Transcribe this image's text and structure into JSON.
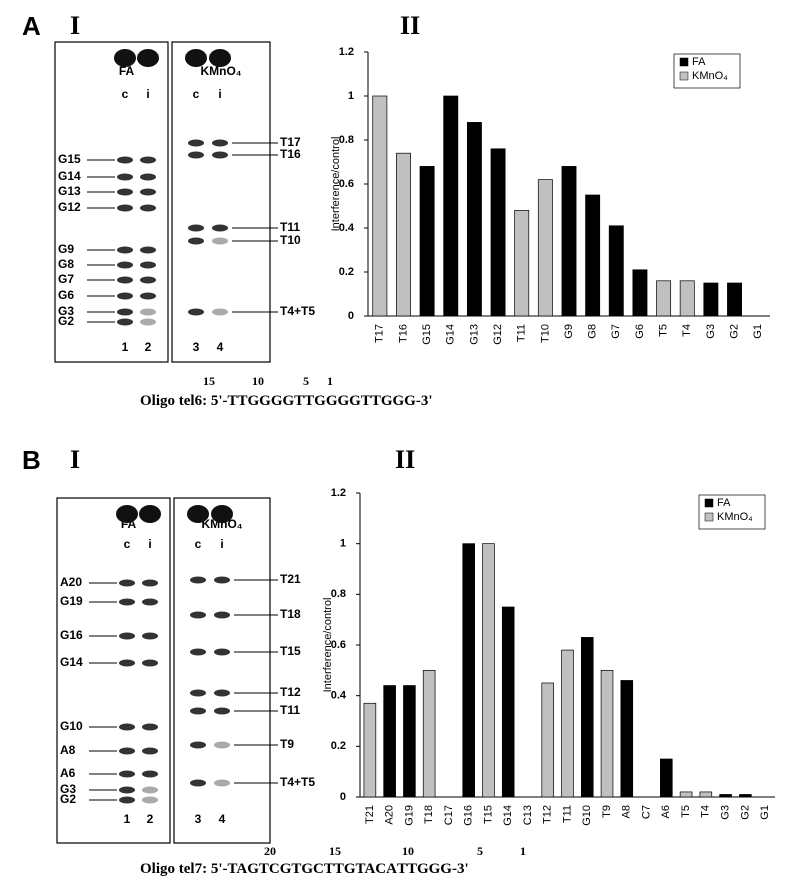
{
  "chart_data": [
    {
      "type": "bar",
      "y_label": "Interference/control",
      "categories": [
        "T17",
        "T16",
        "G15",
        "G14",
        "G13",
        "G12",
        "T11",
        "T10",
        "G9",
        "G8",
        "G7",
        "G6",
        "T5",
        "T4",
        "G3",
        "G2",
        "G1"
      ],
      "series": [
        {
          "name": "FA",
          "color": "#000000",
          "values": [
            null,
            null,
            0.68,
            1.0,
            0.88,
            0.76,
            null,
            null,
            0.68,
            0.55,
            0.41,
            0.21,
            null,
            null,
            0.15,
            0.15,
            0
          ]
        },
        {
          "name": "KMnO₄",
          "color": "#c0c0c0",
          "values": [
            1.0,
            0.74,
            null,
            null,
            null,
            null,
            0.48,
            0.62,
            null,
            null,
            null,
            null,
            0.16,
            0.16,
            null,
            null,
            null
          ]
        }
      ],
      "ylim": [
        0,
        1.2
      ],
      "yticks": [
        0,
        0.2,
        0.4,
        0.6,
        0.8,
        1,
        1.2
      ],
      "grid": false,
      "legend": "top-right"
    },
    {
      "type": "bar",
      "y_label": "Interference/control",
      "categories": [
        "T21",
        "A20",
        "G19",
        "T18",
        "C17",
        "G16",
        "T15",
        "G14",
        "C13",
        "T12",
        "T11",
        "G10",
        "T9",
        "A8",
        "C7",
        "A6",
        "T5",
        "T4",
        "G3",
        "G2",
        "G1"
      ],
      "series": [
        {
          "name": "FA",
          "color": "#000000",
          "values": [
            null,
            0.44,
            0.44,
            null,
            null,
            1.0,
            null,
            0.75,
            null,
            null,
            null,
            0.63,
            null,
            0.46,
            null,
            0.15,
            null,
            null,
            0.01,
            0.01,
            0
          ]
        },
        {
          "name": "KMnO₄",
          "color": "#c0c0c0",
          "values": [
            0.37,
            null,
            null,
            0.5,
            null,
            null,
            1.0,
            null,
            null,
            0.45,
            0.58,
            null,
            0.5,
            null,
            null,
            null,
            0.02,
            0.02,
            null,
            null,
            null
          ]
        }
      ],
      "ylim": [
        0,
        1.2
      ],
      "yticks": [
        0,
        0.2,
        0.4,
        0.6,
        0.8,
        1,
        1.2
      ],
      "grid": false,
      "legend": "top-right"
    }
  ],
  "figure": {
    "panels": [
      {
        "letter": "A",
        "gel_numeral": "I",
        "chart_numeral": "II",
        "gel": {
          "headers": [
            "FA",
            "KMnO₄"
          ],
          "lanes": [
            "c",
            "i",
            "c",
            "i"
          ],
          "lane_numbers": [
            "1",
            "2",
            "3",
            "4"
          ],
          "left_labels": [
            "G15",
            "G14",
            "G13",
            "G12",
            "G9",
            "G8",
            "G7",
            "G6",
            "G3",
            "G2"
          ],
          "right_labels": [
            "T17",
            "T16",
            "T11",
            "T10",
            "T4+T5"
          ]
        },
        "oligo": {
          "text": "Oligo tel6: 5'-TTGGGGTTGGGGTTGGG-3'",
          "markers": [
            "15",
            "10",
            "5",
            "1"
          ]
        }
      },
      {
        "letter": "B",
        "gel_numeral": "I",
        "chart_numeral": "II",
        "gel": {
          "headers": [
            "FA",
            "KMnO₄"
          ],
          "lanes": [
            "c",
            "i",
            "c",
            "i"
          ],
          "lane_numbers": [
            "1",
            "2",
            "3",
            "4"
          ],
          "left_labels": [
            "A20",
            "G19",
            "G16",
            "G14",
            "G10",
            "A8",
            "A6",
            "G3",
            "G2"
          ],
          "right_labels": [
            "T21",
            "T18",
            "T15",
            "T12",
            "T11",
            "T9",
            "T4+T5"
          ]
        },
        "oligo": {
          "text": "Oligo tel7: 5'-TAGTCGTGCTTGTACA",
          "bold": "TTGGG",
          "end": "-3'",
          "markers": [
            "20",
            "15",
            "10",
            "5",
            "1"
          ]
        }
      }
    ]
  }
}
